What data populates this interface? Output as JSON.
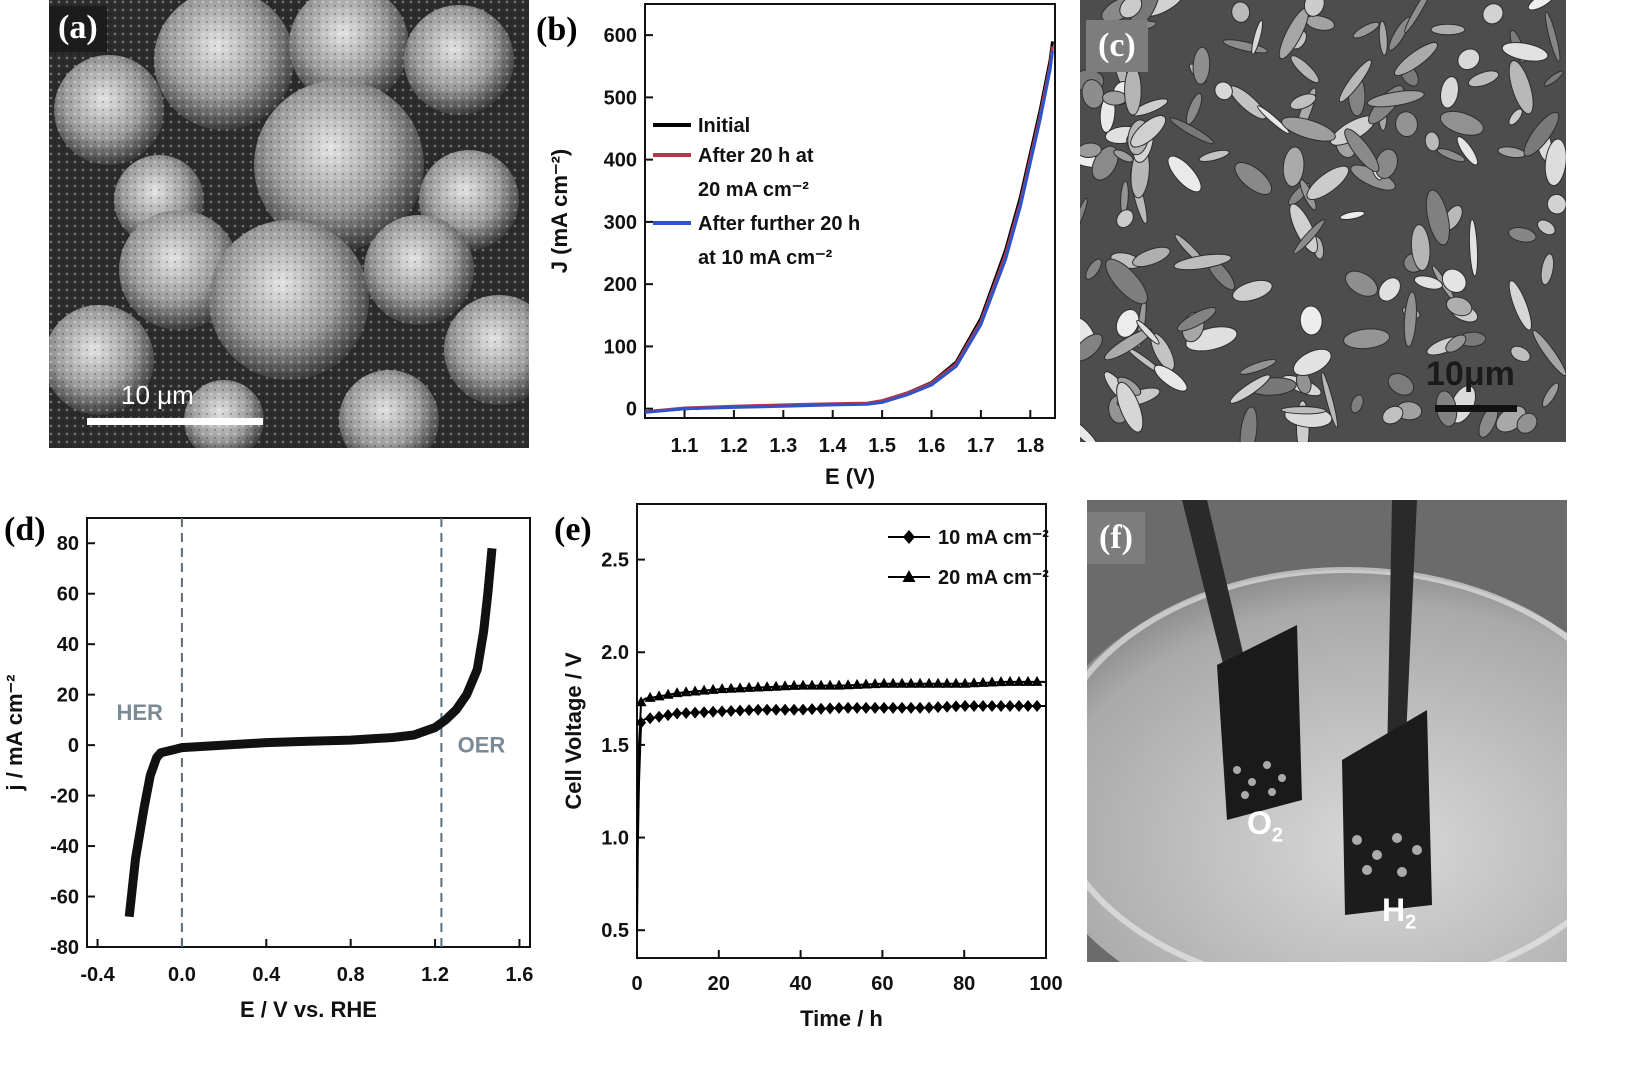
{
  "panels": {
    "a": {
      "label": "(a)",
      "scale_bar": "10 μm"
    },
    "b": {
      "label": "(b)"
    },
    "c": {
      "label": "(c)",
      "scale_bar": "10μm"
    },
    "d": {
      "label": "(d)",
      "region_left": "HER",
      "region_right": "OER"
    },
    "e": {
      "label": "(e)"
    },
    "f": {
      "label": "(f)",
      "anode_gas": "O",
      "anode_sub": "2",
      "cathode_gas": "H",
      "cathode_sub": "2"
    }
  },
  "chart_data": [
    {
      "id": "b",
      "type": "line",
      "xlabel": "E (V)",
      "ylabel": "J (mA cm⁻²)",
      "xlim": [
        1.02,
        1.85
      ],
      "ylim": [
        -15,
        650
      ],
      "xticks": [
        1.1,
        1.2,
        1.3,
        1.4,
        1.5,
        1.6,
        1.7,
        1.8
      ],
      "yticks": [
        0,
        100,
        200,
        300,
        400,
        500,
        600
      ],
      "legend_position": "middle-left",
      "series": [
        {
          "name": "Initial",
          "color": "#000000",
          "x": [
            1.02,
            1.1,
            1.2,
            1.3,
            1.4,
            1.47,
            1.5,
            1.55,
            1.6,
            1.65,
            1.7,
            1.75,
            1.78,
            1.8,
            1.82,
            1.84,
            1.845
          ],
          "y": [
            -5,
            0,
            3,
            5,
            7,
            8,
            12,
            25,
            42,
            75,
            145,
            255,
            340,
            410,
            480,
            560,
            590
          ]
        },
        {
          "name": "After 20 h at\n20 mA cm⁻²",
          "color": "#b0384a",
          "x": [
            1.02,
            1.1,
            1.2,
            1.3,
            1.4,
            1.47,
            1.5,
            1.55,
            1.6,
            1.65,
            1.7,
            1.75,
            1.78,
            1.8,
            1.82,
            1.84,
            1.845
          ],
          "y": [
            -5,
            1,
            4,
            6,
            8,
            9,
            13,
            25,
            41,
            72,
            140,
            248,
            332,
            402,
            472,
            552,
            582
          ]
        },
        {
          "name": "After further 20 h\nat 10 mA cm⁻²",
          "color": "#2f54c9",
          "x": [
            1.02,
            1.1,
            1.2,
            1.3,
            1.4,
            1.47,
            1.5,
            1.55,
            1.6,
            1.65,
            1.7,
            1.75,
            1.78,
            1.8,
            1.82,
            1.84,
            1.845
          ],
          "y": [
            -6,
            0,
            2,
            4,
            6,
            7,
            10,
            22,
            38,
            68,
            135,
            240,
            325,
            395,
            465,
            545,
            575
          ]
        }
      ]
    },
    {
      "id": "d",
      "type": "line",
      "xlabel": "E / V vs. RHE",
      "ylabel": "j / mA cm⁻²",
      "xlim": [
        -0.45,
        1.65
      ],
      "ylim": [
        -80,
        90
      ],
      "xticks": [
        -0.4,
        0.0,
        0.4,
        0.8,
        1.2,
        1.6
      ],
      "xtick_labels": [
        "-0.4",
        "0.0",
        "0.4",
        "0.8",
        "1.2",
        "1.6"
      ],
      "yticks": [
        -80,
        -60,
        -40,
        -20,
        0,
        20,
        40,
        60,
        80
      ],
      "vlines": [
        0.0,
        1.23
      ],
      "series": [
        {
          "name": "",
          "color": "#111111",
          "x": [
            -0.25,
            -0.22,
            -0.18,
            -0.15,
            -0.12,
            -0.1,
            -0.05,
            0.0,
            0.2,
            0.4,
            0.6,
            0.8,
            1.0,
            1.1,
            1.2,
            1.25,
            1.3,
            1.35,
            1.4,
            1.43,
            1.45,
            1.47
          ],
          "y": [
            -68,
            -45,
            -25,
            -12,
            -5,
            -3,
            -2,
            -1,
            0,
            1,
            1.5,
            2,
            3,
            4,
            7,
            10,
            14,
            20,
            30,
            45,
            60,
            78
          ]
        }
      ]
    },
    {
      "id": "e",
      "type": "line",
      "xlabel": "Time / h",
      "ylabel": "Cell Voltage / V",
      "xlim": [
        0,
        100
      ],
      "ylim": [
        0.35,
        2.8
      ],
      "xticks": [
        0,
        20,
        40,
        60,
        80,
        100
      ],
      "yticks": [
        0.5,
        1.0,
        1.5,
        2.0,
        2.5
      ],
      "ytick_labels": [
        "0.5",
        "1.0",
        "1.5",
        "2.0",
        "2.5"
      ],
      "legend_position": "top-right",
      "series": [
        {
          "name": "10 mA cm⁻²",
          "marker": "diamond",
          "color": "#000000",
          "x": [
            0,
            0.2,
            0.5,
            1,
            2,
            5,
            10,
            20,
            30,
            40,
            50,
            60,
            70,
            80,
            90,
            100
          ],
          "y": [
            0.5,
            0.95,
            1.3,
            1.62,
            1.64,
            1.65,
            1.67,
            1.68,
            1.69,
            1.69,
            1.7,
            1.7,
            1.7,
            1.71,
            1.71,
            1.71
          ]
        },
        {
          "name": "20 mA cm⁻²",
          "marker": "triangle",
          "color": "#000000",
          "x": [
            0,
            0.2,
            0.5,
            1,
            2,
            5,
            10,
            20,
            30,
            40,
            50,
            60,
            70,
            80,
            90,
            100
          ],
          "y": [
            0.7,
            1.1,
            1.5,
            1.73,
            1.75,
            1.76,
            1.78,
            1.8,
            1.81,
            1.82,
            1.82,
            1.83,
            1.83,
            1.83,
            1.84,
            1.84
          ]
        }
      ]
    }
  ]
}
